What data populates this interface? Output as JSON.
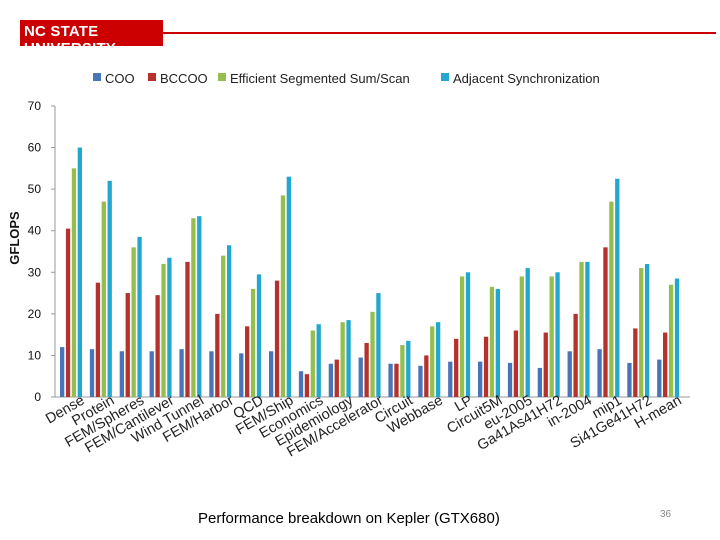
{
  "header": {
    "logo_text": "NC STATE UNIVERSITY"
  },
  "footer": {
    "title": "Performance breakdown on Kepler (GTX680)",
    "page_number": "36"
  },
  "colors": {
    "COO": "#4a74b8",
    "BCCOO": "#b5312c",
    "ESS": "#95be4f",
    "AS": "#22a7d0",
    "brand_red": "#cc0000"
  },
  "chart_data": {
    "type": "bar",
    "title": "",
    "xlabel": "",
    "ylabel": "GFLOPS",
    "ylim": [
      0,
      70
    ],
    "yticks": [
      0,
      10,
      20,
      30,
      40,
      50,
      60,
      70
    ],
    "grid": false,
    "legend_position": "top",
    "categories": [
      "Dense",
      "Protein",
      "FEM/Spheres",
      "FEM/Cantilever",
      "Wind Tunnel",
      "FEM/Harbor",
      "QCD",
      "FEM/Ship",
      "Economics",
      "Epidemiology",
      "FEM/Accelerator",
      "Circuit",
      "Webbase",
      "LP",
      "Circuit5M",
      "eu-2005",
      "Ga41As41H72",
      "in-2004",
      "mip1",
      "Si41Ge41H72",
      "H-mean"
    ],
    "series": [
      {
        "name": "COO",
        "values": [
          12,
          11.5,
          11,
          11,
          11.5,
          11,
          10.5,
          11,
          6.2,
          8,
          9.5,
          8,
          7.5,
          8.5,
          8.5,
          8.2,
          7,
          11,
          11.5,
          8.2,
          9
        ]
      },
      {
        "name": "BCCOO",
        "values": [
          40.5,
          27.5,
          25,
          24.5,
          32.5,
          20,
          17,
          28,
          5.5,
          9,
          13,
          8,
          10,
          14,
          14.5,
          16,
          15.5,
          20,
          36,
          16.5,
          15.5
        ]
      },
      {
        "name": "Efficient Segmented Sum/Scan",
        "values": [
          55,
          47,
          36,
          32,
          43,
          34,
          26,
          48.5,
          16,
          18,
          20.5,
          12.5,
          17,
          29,
          26.5,
          29,
          29,
          32.5,
          47,
          31,
          27
        ]
      },
      {
        "name": "Adjacent Synchronization",
        "values": [
          60,
          52,
          38.5,
          33.5,
          43.5,
          36.5,
          29.5,
          53,
          17.5,
          18.5,
          25,
          13.5,
          18,
          30,
          26,
          31,
          30,
          32.5,
          52.5,
          32,
          28.5
        ]
      }
    ]
  }
}
